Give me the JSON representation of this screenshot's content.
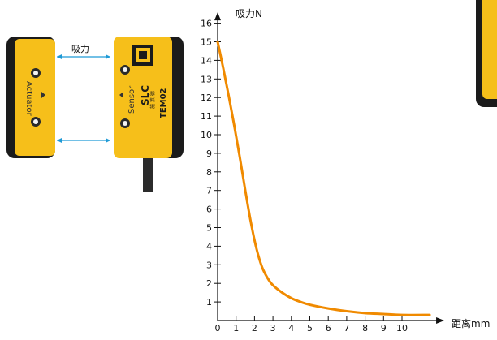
{
  "illustration": {
    "actuator_label": "Actuator",
    "sensor_label": "Sensor",
    "brand_label": "SLC",
    "brand_sub_label": "施 莱 德",
    "model_label": "TEM02",
    "force_arrow_label": "吸力",
    "colors": {
      "housing": "#f6bf1a",
      "housing_dark": "#1b1b1b",
      "arrow": "#1f9ad6",
      "screw": "#f2f2f2"
    }
  },
  "chart_data": {
    "type": "line",
    "title": "",
    "xlabel": "距离mm",
    "ylabel": "吸力N",
    "x_ticks": [
      0,
      1,
      2,
      3,
      4,
      5,
      6,
      7,
      8,
      9,
      10
    ],
    "y_ticks": [
      1,
      2,
      3,
      4,
      5,
      6,
      7,
      8,
      9,
      10,
      11,
      12,
      13,
      14,
      15,
      16
    ],
    "xlim": [
      0,
      11.5
    ],
    "ylim": [
      0,
      16.5
    ],
    "grid": false,
    "legend": "none",
    "series": [
      {
        "color": "#f08a00",
        "x": [
          0,
          0.3,
          0.6,
          0.9,
          1.2,
          1.5,
          1.8,
          2.1,
          2.4,
          2.7,
          3.0,
          3.5,
          4.0,
          4.5,
          5.0,
          6.0,
          7.0,
          8.0,
          9.0,
          10.0,
          11.5
        ],
        "y": [
          15.0,
          13.6,
          12.1,
          10.5,
          8.8,
          7.0,
          5.3,
          3.9,
          2.9,
          2.3,
          1.9,
          1.5,
          1.2,
          1.0,
          0.85,
          0.65,
          0.5,
          0.4,
          0.35,
          0.3,
          0.3
        ]
      }
    ]
  }
}
